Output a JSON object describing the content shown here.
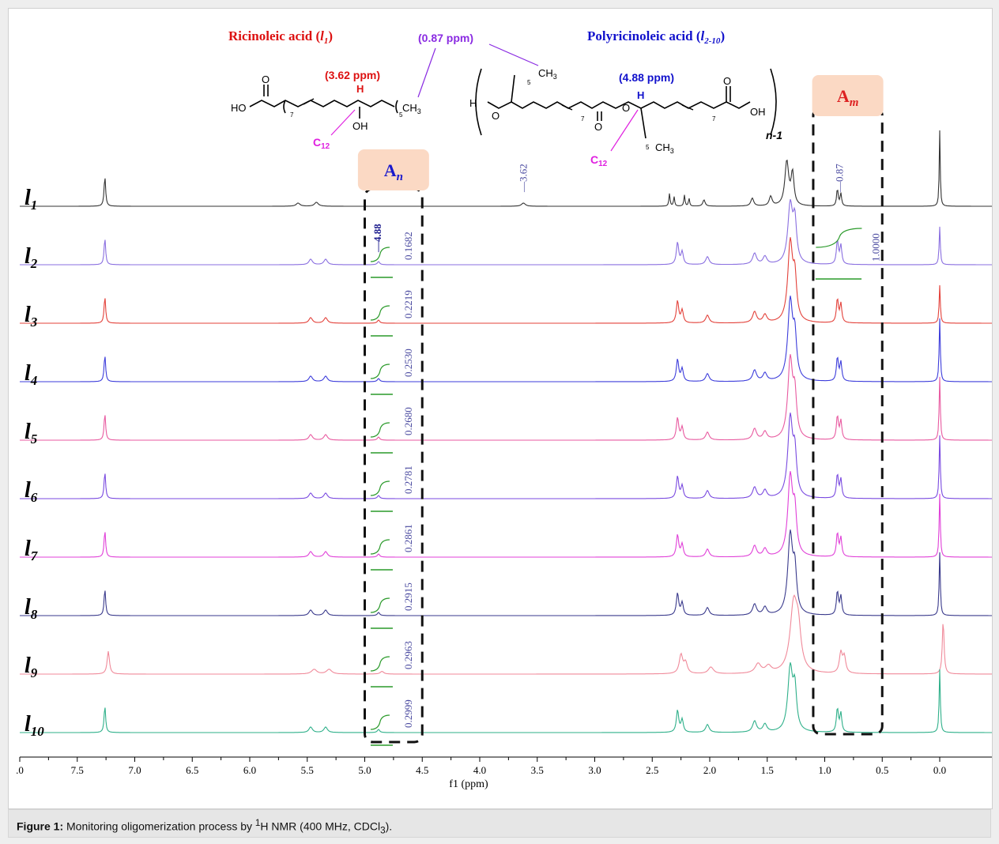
{
  "chart_data": {
    "type": "line",
    "title": "",
    "xlabel": "f1 (ppm)",
    "ylabel": "",
    "xlim": [
      8.0,
      -0.5
    ],
    "x_reversed": true,
    "x_ticks": [
      ".0",
      "7.5",
      "7.0",
      "6.5",
      "6.0",
      "5.5",
      "5.0",
      "4.5",
      "4.0",
      "3.5",
      "3.0",
      "2.5",
      "2.0",
      "1.5",
      "1.0",
      "0.5",
      "0.0"
    ],
    "x_tick_values": [
      8.0,
      7.5,
      7.0,
      6.5,
      6.0,
      5.5,
      5.0,
      4.5,
      4.0,
      3.5,
      3.0,
      2.5,
      2.0,
      1.5,
      1.0,
      0.5,
      0.0
    ],
    "series": [
      {
        "name": "l1",
        "label_main": "l",
        "label_sub": "1",
        "color": "#333333"
      },
      {
        "name": "l2",
        "label_main": "l",
        "label_sub": "2",
        "color": "#8a6fe0",
        "integral_An": "0.1682",
        "integral_Am": "1.0000",
        "peak_label": "4.88"
      },
      {
        "name": "l3",
        "label_main": "l",
        "label_sub": "3",
        "color": "#e3413a",
        "integral_An": "0.2219"
      },
      {
        "name": "l4",
        "label_main": "l",
        "label_sub": "4",
        "color": "#3d3ddb",
        "integral_An": "0.2530"
      },
      {
        "name": "l5",
        "label_main": "l",
        "label_sub": "5",
        "color": "#e85aa0",
        "integral_An": "0.2680"
      },
      {
        "name": "l6",
        "label_main": "l",
        "label_sub": "6",
        "color": "#7a4ae0",
        "integral_An": "0.2781"
      },
      {
        "name": "l7",
        "label_main": "l",
        "label_sub": "7",
        "color": "#e040d8",
        "integral_An": "0.2861"
      },
      {
        "name": "l8",
        "label_main": "l",
        "label_sub": "8",
        "color": "#3a3a8c",
        "integral_An": "0.2915"
      },
      {
        "name": "l9",
        "label_main": "l",
        "label_sub": "9",
        "color": "#f08a9a",
        "integral_An": "0.2963"
      },
      {
        "name": "l10",
        "label_main": "l",
        "label_sub": "10",
        "color": "#2fb08a",
        "integral_An": "0.2999"
      }
    ],
    "peaks_ppm": [
      7.26,
      5.55,
      5.45,
      5.35,
      4.88,
      3.62,
      2.33,
      2.27,
      2.2,
      2.02,
      1.62,
      1.52,
      1.3,
      1.25,
      0.87,
      0.0
    ],
    "peak_labels": [
      "3.62",
      "0.87"
    ],
    "regions": [
      {
        "label_main": "A",
        "label_sub": "n",
        "color": "#1a1acc",
        "ppm_range": [
          5.0,
          4.5
        ]
      },
      {
        "label_main": "A",
        "label_sub": "m",
        "color": "#dd2222",
        "ppm_range": [
          1.1,
          0.5
        ]
      }
    ]
  },
  "structures": {
    "ricinoleic_title": "Ricinoleic acid",
    "ricinoleic_sub": "1",
    "polyricinoleic_title": "Polyricinoleic acid",
    "polyricinoleic_sub": "2-10",
    "ppm_362": "(3.62 ppm)",
    "ppm_087": "(0.87 ppm)",
    "ppm_488": "(4.88 ppm)",
    "c12_label": "C",
    "c12_sub": "12",
    "ho": "HO",
    "oh": "OH",
    "o": "O",
    "h": "H",
    "ch3": "CH",
    "n_minus_1": "n-1",
    "idx_7": "7",
    "idx_5": "5"
  },
  "caption": {
    "prefix": "Figure 1:",
    "text1": " Monitoring oligomerization process by ",
    "sup1": "1",
    "text2": "H NMR (400 MHz, CDCl",
    "sub3": "3",
    "text3": ")."
  }
}
